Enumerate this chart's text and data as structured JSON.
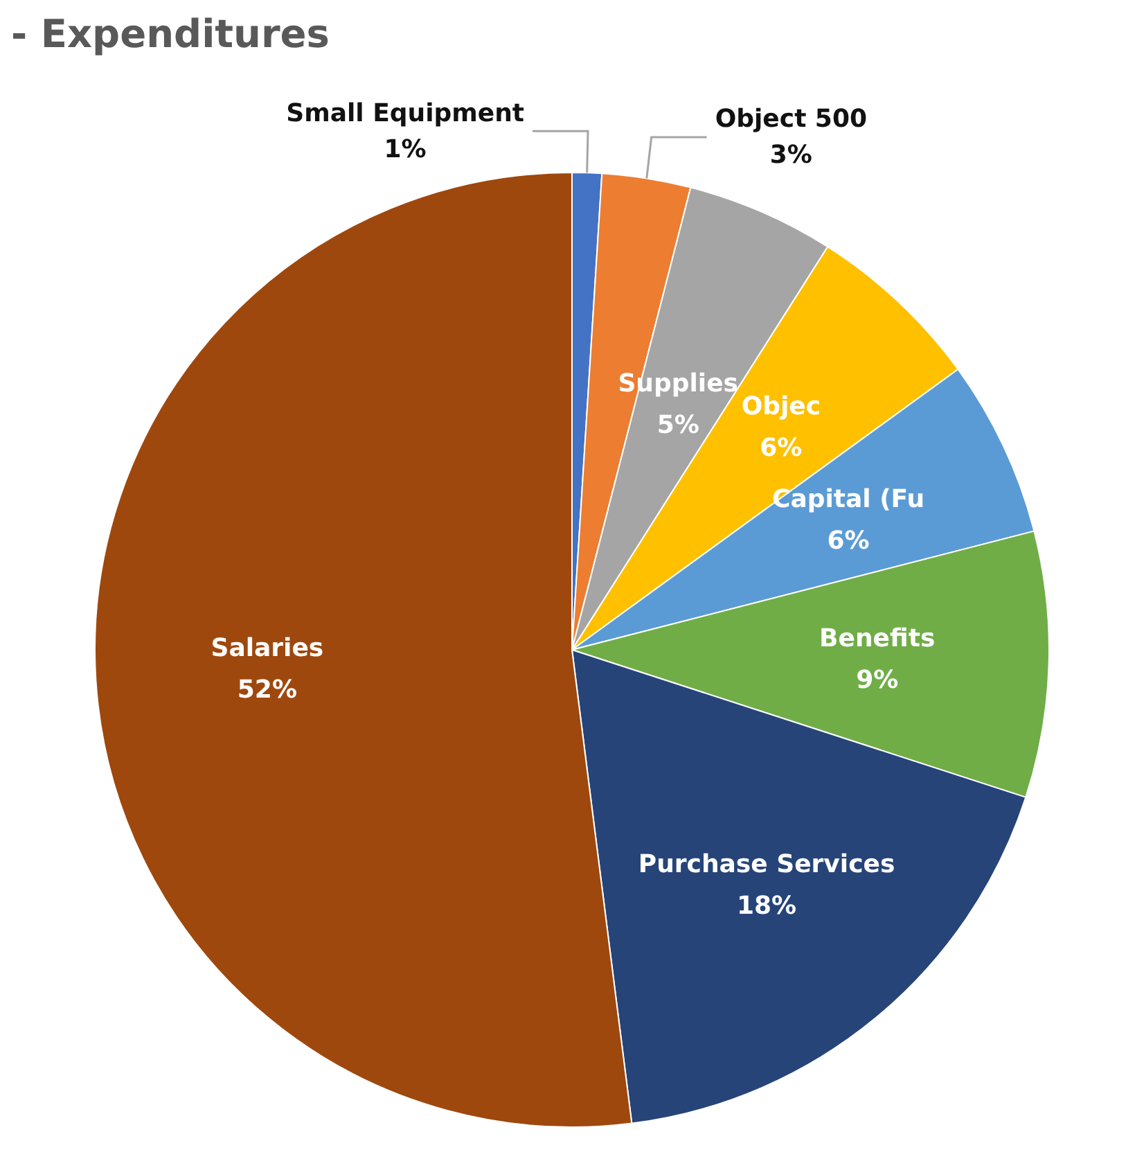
{
  "chart_data": {
    "type": "pie",
    "title": "- Expenditures",
    "categories": [
      "Small Equipment",
      "Object 500",
      "Supplies",
      "Objec",
      "Capital (Fu",
      "Benefits",
      "Purchase Services",
      "Salaries"
    ],
    "values": [
      1,
      3,
      5,
      6,
      6,
      9,
      18,
      52
    ],
    "colors": [
      "#4472c4",
      "#ed7d31",
      "#a5a5a5",
      "#ffc000",
      "#5b9bd5",
      "#70ad47",
      "#264478",
      "#9e480e"
    ],
    "value_labels": [
      "1%",
      "3%",
      "5%",
      "6%",
      "6%",
      "9%",
      "18%",
      "52%"
    ],
    "legend": false
  }
}
